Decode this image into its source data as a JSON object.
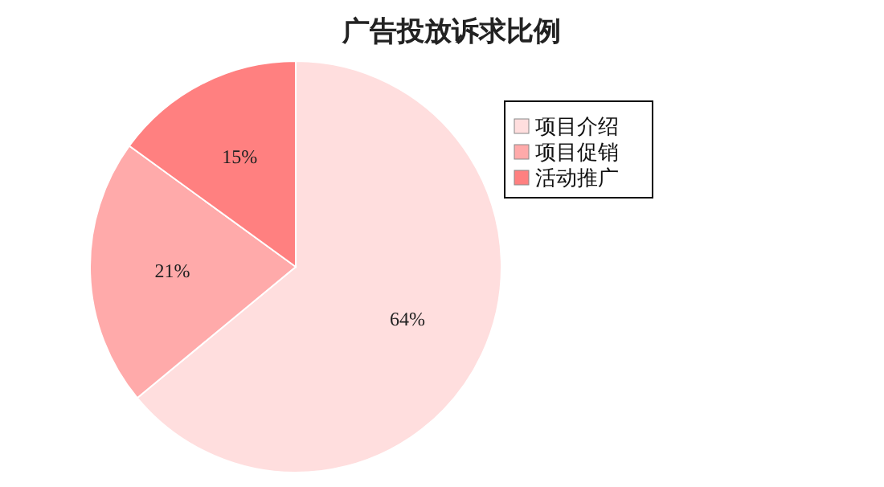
{
  "chart_data": {
    "type": "pie",
    "title": "广告投放诉求比例",
    "categories": [
      "项目介绍",
      "项目促销",
      "活动推广"
    ],
    "values": [
      64,
      21,
      15
    ],
    "colors": [
      "#ffdede",
      "#ffaaaa",
      "#ff8080"
    ],
    "value_labels": [
      "64%",
      "21%",
      "15%"
    ],
    "legend": "right"
  }
}
